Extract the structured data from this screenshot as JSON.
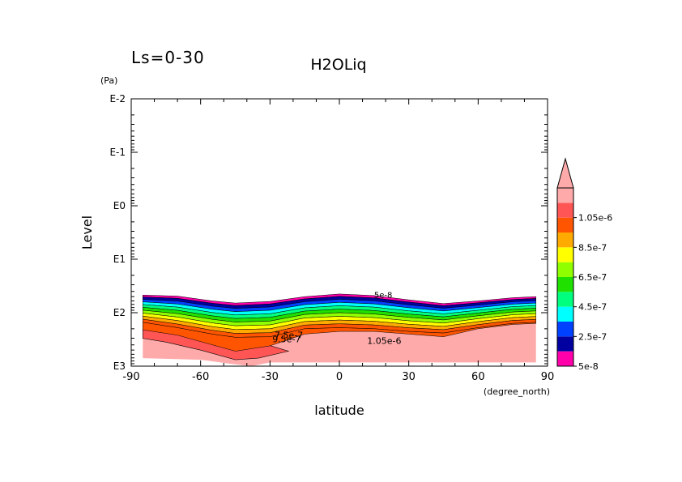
{
  "chart_data": {
    "type": "heatmap",
    "title": "H2OLiq",
    "subtitle": "Ls=0-30",
    "xlabel": "latitude",
    "xunits": "(degree_north)",
    "ylabel": "Level",
    "yunits": "(Pa)",
    "xlim": [
      -90,
      90
    ],
    "x_ticks": [
      "-90",
      "-60",
      "-30",
      "0",
      "30",
      "60",
      "90"
    ],
    "y_scale": "log",
    "ylim_exp": [
      -2,
      3
    ],
    "y_ticks": [
      "E-2",
      "E-1",
      "E0",
      "E1",
      "E2",
      "E3"
    ],
    "colorbar": {
      "labels": [
        "5e-8",
        "2.5e-7",
        "4.5e-7",
        "6.5e-7",
        "8.5e-7",
        "1.05e-6"
      ],
      "colors": [
        "#ff00aa",
        "#0000a0",
        "#0040ff",
        "#00ffff",
        "#00ff7f",
        "#20e000",
        "#90ff00",
        "#ffff00",
        "#ffaa00",
        "#ff5500",
        "#ff5555",
        "#ffaaaa"
      ],
      "extend": "max"
    },
    "contour_labels": [
      "1.05e-6",
      "7.5e-7",
      "9.5e-7",
      "5e-8"
    ],
    "band_edges_log10Pa": {
      "lat": [
        -85,
        -70,
        -55,
        -45,
        -30,
        -15,
        0,
        15,
        30,
        45,
        60,
        75,
        85
      ],
      "top": [
        1.67,
        1.69,
        1.78,
        1.82,
        1.79,
        1.7,
        1.65,
        1.68,
        1.76,
        1.83,
        1.78,
        1.72,
        1.7
      ],
      "dense_top": [
        2.18,
        2.28,
        2.4,
        2.46,
        2.45,
        2.3,
        2.28,
        2.3,
        2.35,
        2.38,
        2.28,
        2.2,
        2.18
      ],
      "pink_top": [
        2.32,
        2.42,
        2.6,
        2.72,
        2.62,
        2.4,
        2.35,
        2.35,
        2.4,
        2.45,
        2.3,
        2.22,
        2.2
      ]
    }
  }
}
